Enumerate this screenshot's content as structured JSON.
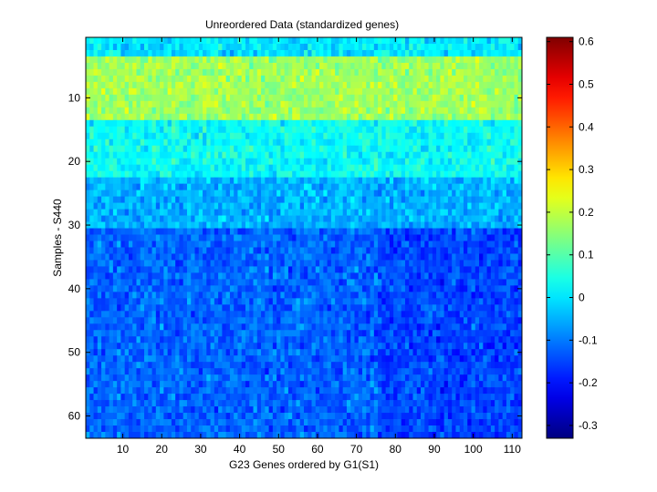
{
  "chart_data": {
    "type": "heatmap",
    "title": "Unreordered Data (standardized genes)",
    "xlabel": "G23 Genes ordered by G1(S1)",
    "ylabel": "Samples - S440",
    "x_range": [
      1,
      112
    ],
    "y_range": [
      1,
      63
    ],
    "n_cols": 112,
    "n_rows": 63,
    "x_ticks": [
      10,
      20,
      30,
      40,
      50,
      60,
      70,
      80,
      90,
      100,
      110
    ],
    "y_ticks": [
      10,
      20,
      30,
      40,
      50,
      60
    ],
    "colorbar": {
      "colormap": "jet",
      "min": -0.33,
      "max": 0.61,
      "ticks": [
        0.6,
        0.5,
        0.4,
        0.3,
        0.2,
        0.1,
        0,
        -0.1,
        -0.2,
        -0.3
      ],
      "tick_labels": [
        "0.6",
        "0.5",
        "0.4",
        "0.3",
        "0.2",
        "0.1",
        "0",
        "-0.1",
        "-0.2",
        "-0.3"
      ]
    },
    "row_profile": {
      "description_values_by_row_band": [
        {
          "rows": [
            1,
            3
          ],
          "value": 0.0
        },
        {
          "rows": [
            4,
            13
          ],
          "value": 0.17
        },
        {
          "rows": [
            14,
            22
          ],
          "value": 0.03
        },
        {
          "rows": [
            23,
            30
          ],
          "value": -0.05
        },
        {
          "rows": [
            31,
            63
          ],
          "value": -0.12
        }
      ]
    },
    "grid": false,
    "legend": "none"
  }
}
